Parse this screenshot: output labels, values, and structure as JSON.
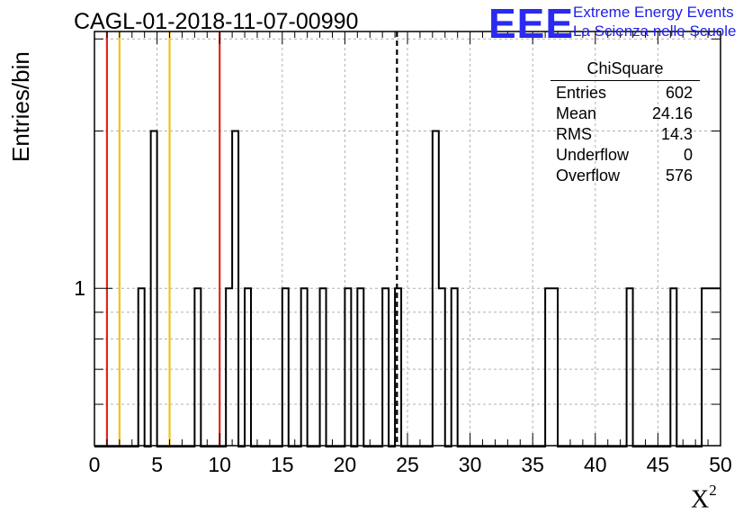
{
  "header": {
    "title": "CAGL-01-2018-11-07-00990",
    "logo_mark": "EEE",
    "logo_line1": "Extreme Energy Events",
    "logo_line2": "La Scienza nelle Scuole"
  },
  "stats": {
    "title": "ChiSquare",
    "rows": [
      {
        "label": "Entries",
        "value": "602"
      },
      {
        "label": "Mean",
        "value": "24.16"
      },
      {
        "label": "RMS",
        "value": "14.3"
      },
      {
        "label": "Underflow",
        "value": "0"
      },
      {
        "label": "Overflow",
        "value": "576"
      }
    ]
  },
  "chart_data": {
    "type": "bar",
    "title": "CAGL-01-2018-11-07-00990",
    "xlabel": "X",
    "xlabel_sup": "2",
    "ylabel": "Entries/bin",
    "xlim": [
      0,
      50
    ],
    "ylim": [
      0.5,
      3.1
    ],
    "y_scale": "log",
    "grid": true,
    "bin_width": 0.5,
    "x_ticks": [
      0,
      5,
      10,
      15,
      20,
      25,
      30,
      35,
      40,
      45,
      50
    ],
    "y_tick_labels": [
      {
        "value": 1,
        "label": "1"
      }
    ],
    "bins": [
      {
        "x": 3.5,
        "count": 1
      },
      {
        "x": 4.5,
        "count": 2
      },
      {
        "x": 8.0,
        "count": 1
      },
      {
        "x": 10.5,
        "count": 1
      },
      {
        "x": 11.0,
        "count": 2
      },
      {
        "x": 12.0,
        "count": 1
      },
      {
        "x": 15.0,
        "count": 1
      },
      {
        "x": 16.5,
        "count": 1
      },
      {
        "x": 18.0,
        "count": 1
      },
      {
        "x": 20.0,
        "count": 1
      },
      {
        "x": 21.0,
        "count": 1
      },
      {
        "x": 23.0,
        "count": 1
      },
      {
        "x": 24.0,
        "count": 1
      },
      {
        "x": 27.0,
        "count": 2
      },
      {
        "x": 27.5,
        "count": 1
      },
      {
        "x": 28.5,
        "count": 1
      },
      {
        "x": 36.0,
        "count": 1
      },
      {
        "x": 36.5,
        "count": 1
      },
      {
        "x": 42.5,
        "count": 1
      },
      {
        "x": 46.0,
        "count": 1
      },
      {
        "x": 48.5,
        "count": 1
      },
      {
        "x": 49.0,
        "count": 1
      },
      {
        "x": 49.5,
        "count": 1
      }
    ],
    "reference_lines": [
      {
        "x": 1,
        "color": "#e0241c",
        "style": "solid"
      },
      {
        "x": 2,
        "color": "#f2c21a",
        "style": "solid"
      },
      {
        "x": 6,
        "color": "#f2c21a",
        "style": "solid"
      },
      {
        "x": 10,
        "color": "#e0241c",
        "style": "solid"
      },
      {
        "x": 24.16,
        "color": "#000000",
        "style": "dashed"
      }
    ],
    "colors": {
      "histogram": "#000000",
      "grid": "#b0b0b0"
    }
  }
}
